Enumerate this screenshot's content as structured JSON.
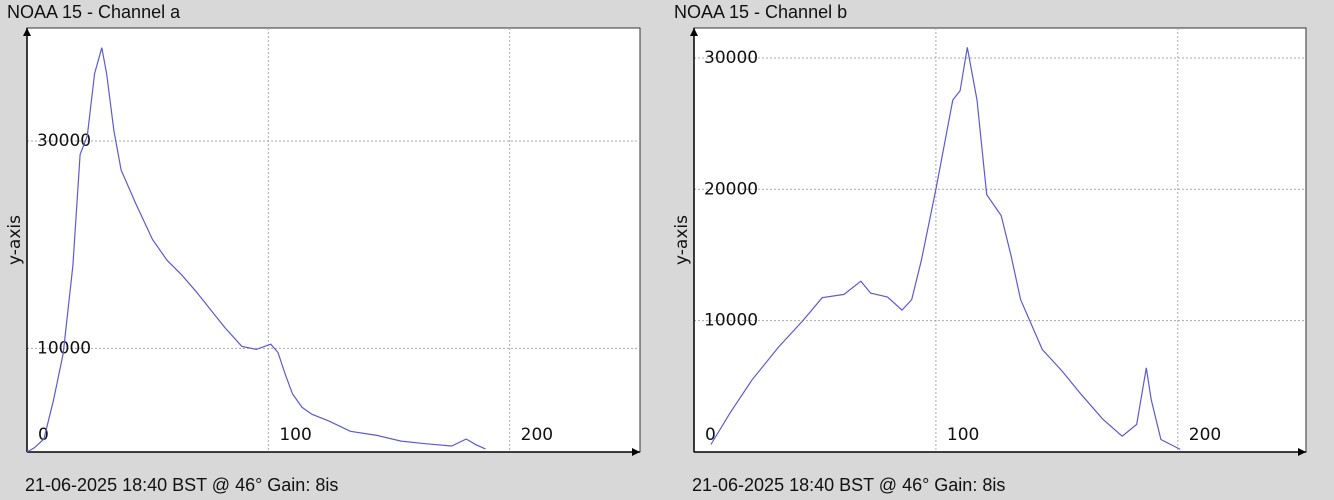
{
  "chart_data": [
    {
      "type": "line",
      "title": "NOAA 15 - Channel a",
      "ylabel": "y-axis",
      "footer": "21-06-2025 18:40 BST @ 46° Gain: 8is",
      "xlim": [
        0,
        254
      ],
      "ylim": [
        0,
        40900
      ],
      "xticks": [
        0,
        100,
        200
      ],
      "yticks": [
        10000,
        30000
      ],
      "grid": true,
      "series": [
        {
          "name": "Channel a",
          "color": "#5b5bd6",
          "x": [
            0,
            3,
            7,
            11,
            15,
            19,
            22,
            25,
            28,
            31,
            33,
            36,
            39,
            45,
            52,
            58,
            64,
            70,
            76,
            82,
            89,
            95,
            101,
            104,
            107,
            110,
            114,
            118,
            125,
            134,
            145,
            155,
            165,
            176,
            182,
            186,
            190
          ],
          "values": [
            0,
            400,
            1250,
            5000,
            9500,
            18000,
            28700,
            30500,
            36500,
            39000,
            36500,
            31000,
            27200,
            24000,
            20500,
            18500,
            17100,
            15500,
            13750,
            12000,
            10200,
            9900,
            10400,
            9600,
            7500,
            5600,
            4300,
            3650,
            3000,
            2000,
            1600,
            1050,
            800,
            580,
            1250,
            700,
            300
          ]
        }
      ]
    },
    {
      "type": "line",
      "title": "NOAA 15 - Channel b",
      "ylabel": "y-axis",
      "footer": "21-06-2025 18:40 BST @ 46° Gain: 8is",
      "xlim": [
        0,
        253
      ],
      "ylim": [
        0,
        32280
      ],
      "xticks": [
        0,
        100,
        200
      ],
      "yticks": [
        10000,
        20000,
        30000
      ],
      "grid": true,
      "series": [
        {
          "name": "Channel b",
          "color": "#5b5bd6",
          "x": [
            7,
            15,
            24,
            35,
            45,
            53,
            62,
            69,
            73,
            80,
            86,
            90,
            94,
            100,
            107,
            110,
            113,
            117,
            121,
            127,
            131,
            135,
            144,
            152,
            160,
            169,
            177,
            183,
            187,
            189,
            193,
            201
          ],
          "values": [
            570,
            3000,
            5500,
            8000,
            10000,
            11750,
            12000,
            13000,
            12100,
            11800,
            10800,
            11600,
            14600,
            20000,
            26800,
            27500,
            30800,
            26800,
            19600,
            18000,
            15000,
            11600,
            7800,
            6200,
            4400,
            2500,
            1200,
            2100,
            6400,
            4000,
            950,
            200
          ]
        }
      ]
    }
  ]
}
